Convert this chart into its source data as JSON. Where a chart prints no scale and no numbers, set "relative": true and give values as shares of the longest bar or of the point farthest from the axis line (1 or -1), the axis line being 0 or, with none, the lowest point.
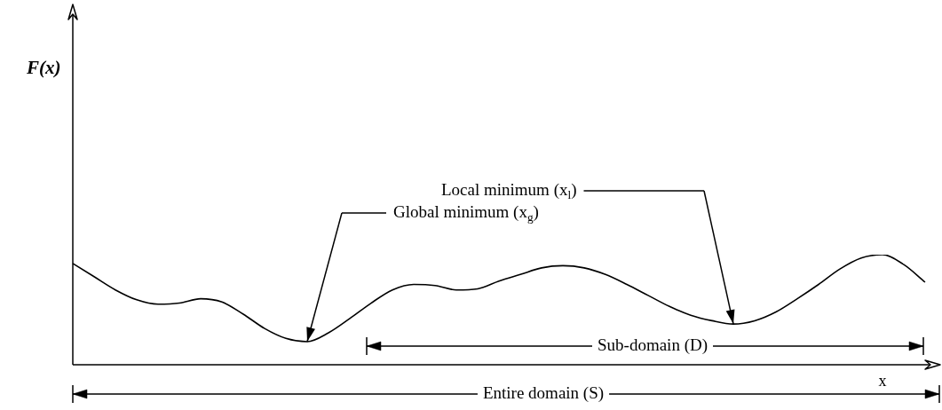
{
  "chart_data": {
    "type": "line",
    "relative": true,
    "xlabel": "x",
    "color": "#000000",
    "marker": "none",
    "line_style": "solid",
    "legend": false,
    "categories": [
      null,
      null,
      null,
      null,
      null,
      null,
      null,
      null,
      null,
      null,
      null,
      null,
      null,
      null,
      null,
      null,
      null,
      null,
      null,
      null,
      null,
      null,
      null,
      null,
      null,
      null,
      null,
      null,
      null,
      null,
      null,
      null,
      null,
      null,
      null,
      null,
      null,
      null,
      null,
      null,
      null
    ],
    "values": [
      0.92,
      0.8,
      0.68,
      0.59,
      0.55,
      0.56,
      0.6,
      0.57,
      0.46,
      0.33,
      0.24,
      0.21,
      0.29,
      0.42,
      0.56,
      0.68,
      0.73,
      0.72,
      0.68,
      0.69,
      0.76,
      0.82,
      0.88,
      0.9,
      0.88,
      0.82,
      0.73,
      0.63,
      0.53,
      0.45,
      0.4,
      0.37,
      0.4,
      0.48,
      0.6,
      0.73,
      0.87,
      0.97,
      1,
      0.91,
      0.75
    ],
    "annotations": [
      "Global minimum (x$_{g}$)",
      "Local minimum (x$_{l}$)",
      "Sub-domain (D)",
      "Entire domain (S)",
      "F(x)"
    ]
  }
}
